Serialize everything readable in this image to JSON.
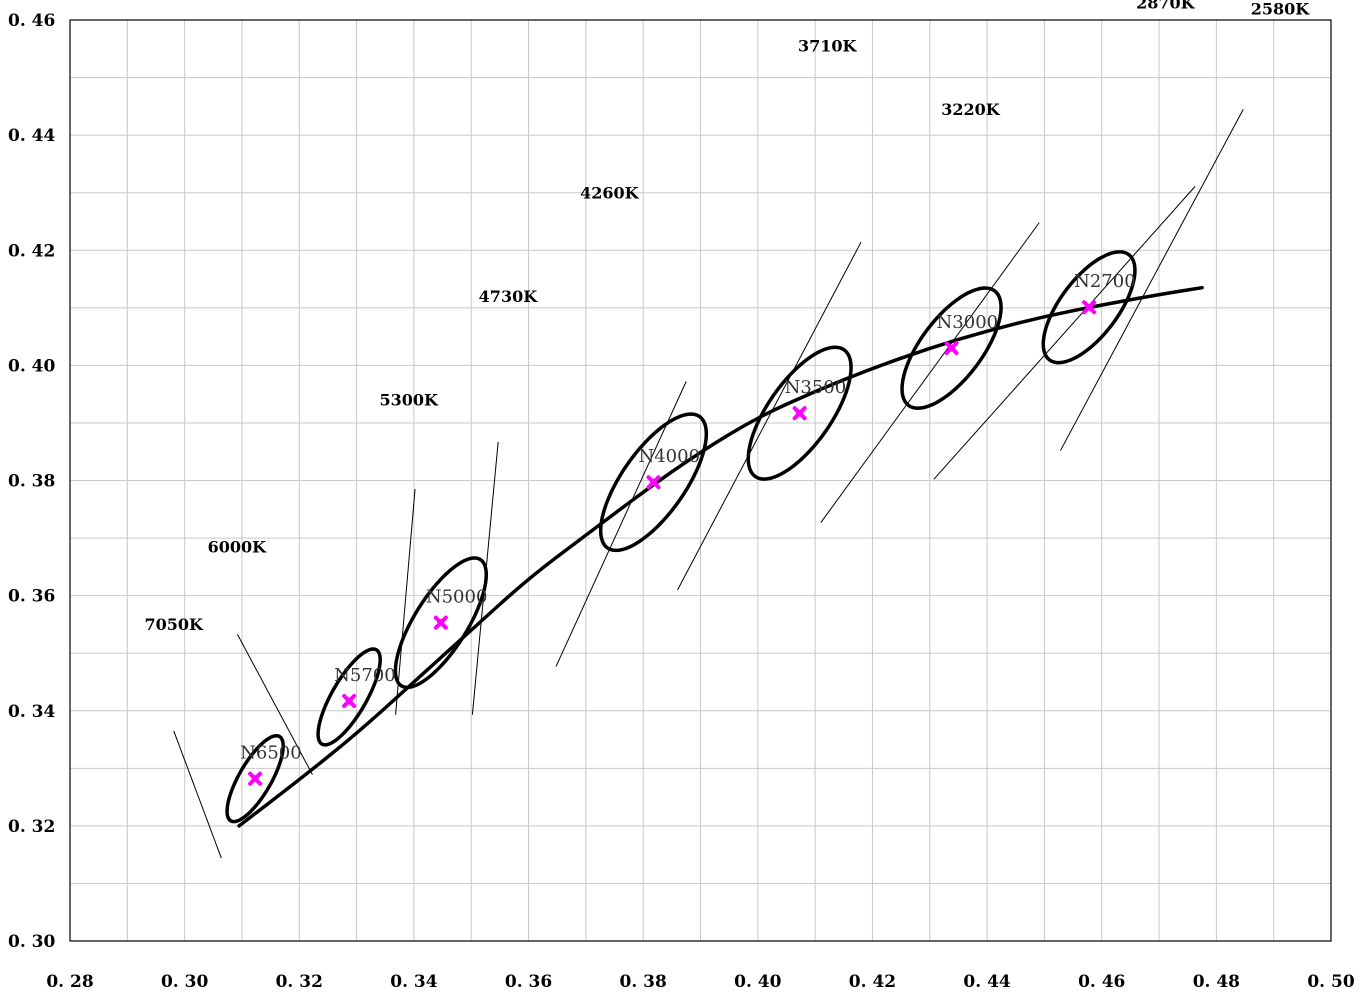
{
  "chart_data": {
    "type": "scatter",
    "title": "",
    "xlabel": "",
    "ylabel": "",
    "xlim": [
      0.28,
      0.5
    ],
    "ylim": [
      0.3,
      0.46
    ],
    "grid": true,
    "x_ticks": [
      "0. 28",
      "0. 30",
      "0. 32",
      "0. 34",
      "0. 36",
      "0. 38",
      "0. 40",
      "0. 42",
      "0. 44",
      "0. 46",
      "0. 48",
      "0. 50"
    ],
    "x_tick_values": [
      0.28,
      0.3,
      0.32,
      0.34,
      0.36,
      0.38,
      0.4,
      0.42,
      0.44,
      0.46,
      0.48,
      0.5
    ],
    "y_ticks": [
      "0. 30",
      "0. 32",
      "0. 34",
      "0. 36",
      "0. 38",
      "0. 40",
      "0. 42",
      "0. 44",
      "0. 46"
    ],
    "y_tick_values": [
      0.3,
      0.32,
      0.34,
      0.36,
      0.38,
      0.4,
      0.42,
      0.44,
      0.46
    ],
    "locus_curve": [
      [
        0.3095,
        0.32
      ],
      [
        0.32,
        0.328
      ],
      [
        0.33,
        0.336
      ],
      [
        0.34,
        0.345
      ],
      [
        0.35,
        0.354
      ],
      [
        0.36,
        0.363
      ],
      [
        0.37,
        0.3705
      ],
      [
        0.38,
        0.378
      ],
      [
        0.39,
        0.385
      ],
      [
        0.4,
        0.391
      ],
      [
        0.41,
        0.3955
      ],
      [
        0.42,
        0.3995
      ],
      [
        0.43,
        0.403
      ],
      [
        0.44,
        0.406
      ],
      [
        0.45,
        0.4085
      ],
      [
        0.46,
        0.4105
      ],
      [
        0.47,
        0.4123
      ],
      [
        0.4775,
        0.4135
      ]
    ],
    "nominal_points": [
      {
        "label": "N6500",
        "x": 0.3123,
        "y": 0.3282,
        "ellipse": {
          "cx": 0.3123,
          "cy": 0.3282,
          "a": 0.0085,
          "b": 0.0028,
          "angle_deg": 60
        }
      },
      {
        "label": "N5700",
        "x": 0.3287,
        "y": 0.3417,
        "ellipse": {
          "cx": 0.3287,
          "cy": 0.3424,
          "a": 0.0095,
          "b": 0.003,
          "angle_deg": 60
        }
      },
      {
        "label": "N5000",
        "x": 0.3447,
        "y": 0.3553,
        "ellipse": {
          "cx": 0.3447,
          "cy": 0.3553,
          "a": 0.013,
          "b": 0.0046,
          "angle_deg": 58
        }
      },
      {
        "label": "N4000",
        "x": 0.3818,
        "y": 0.3797,
        "ellipse": {
          "cx": 0.3818,
          "cy": 0.3797,
          "a": 0.014,
          "b": 0.0055,
          "angle_deg": 55
        }
      },
      {
        "label": "N3500",
        "x": 0.4073,
        "y": 0.3917,
        "ellipse": {
          "cx": 0.4073,
          "cy": 0.3917,
          "a": 0.0135,
          "b": 0.0055,
          "angle_deg": 55
        }
      },
      {
        "label": "N3000",
        "x": 0.4338,
        "y": 0.403,
        "ellipse": {
          "cx": 0.4338,
          "cy": 0.403,
          "a": 0.0125,
          "b": 0.0053,
          "angle_deg": 53
        }
      },
      {
        "label": "N2700",
        "x": 0.4578,
        "y": 0.4101,
        "ellipse": {
          "cx": 0.4578,
          "cy": 0.4101,
          "a": 0.0115,
          "b": 0.005,
          "angle_deg": 53
        }
      }
    ],
    "isotemperature_lines": [
      {
        "label": "7050K",
        "x1": 0.2981,
        "y1": 0.3365,
        "x2": 0.3064,
        "y2": 0.3144,
        "label_x": 0.293,
        "label_y": 0.354
      },
      {
        "label": "6000K",
        "x1": 0.3092,
        "y1": 0.3533,
        "x2": 0.3223,
        "y2": 0.3289,
        "label_x": 0.304,
        "label_y": 0.3675
      },
      {
        "label": "5300K",
        "x1": 0.3402,
        "y1": 0.3785,
        "x2": 0.3368,
        "y2": 0.3393,
        "label_x": 0.334,
        "label_y": 0.393
      },
      {
        "label": "4730K",
        "x1": 0.3547,
        "y1": 0.3867,
        "x2": 0.3502,
        "y2": 0.3393,
        "label_x": 0.3513,
        "label_y": 0.411
      },
      {
        "label": "4260K",
        "x1": 0.3875,
        "y1": 0.3972,
        "x2": 0.3648,
        "y2": 0.3477,
        "label_x": 0.369,
        "label_y": 0.429
      },
      {
        "label": "3710K",
        "x1": 0.418,
        "y1": 0.4214,
        "x2": 0.386,
        "y2": 0.361,
        "label_x": 0.407,
        "label_y": 0.4545
      },
      {
        "label": "3220K",
        "x1": 0.4491,
        "y1": 0.4248,
        "x2": 0.411,
        "y2": 0.3727,
        "label_x": 0.432,
        "label_y": 0.4435
      },
      {
        "label": "2870K",
        "x1": 0.4763,
        "y1": 0.4311,
        "x2": 0.4307,
        "y2": 0.3802,
        "label_x": 0.466,
        "label_y": 0.462
      },
      {
        "label": "2580K",
        "x1": 0.4847,
        "y1": 0.4445,
        "x2": 0.4528,
        "y2": 0.3852,
        "label_x": 0.486,
        "label_y": 0.461
      }
    ],
    "colors": {
      "curve": "#000000",
      "marker": "#ff00ff",
      "grid": "#c8c8c8",
      "axis": "#000000"
    }
  }
}
